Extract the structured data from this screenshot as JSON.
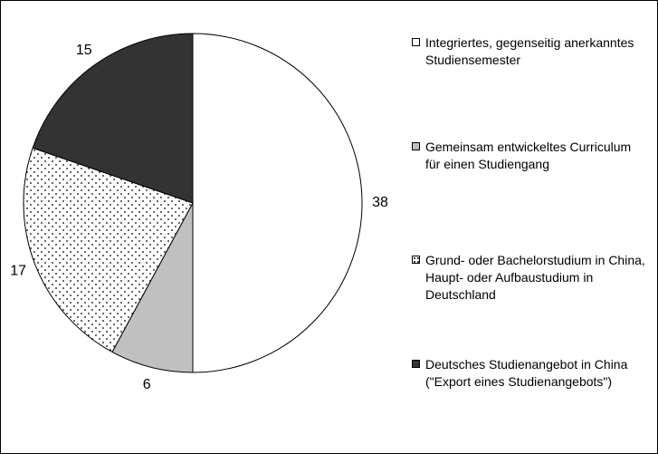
{
  "chart_data": {
    "type": "pie",
    "categories": [
      "Integriertes, gegenseitig anerkanntes Studiensemester",
      "Gemeinsam entwickeltes Curriculum für einen Studiengang",
      "Grund- oder Bachelorstudium in China, Haupt- oder Aufbaustudium in Deutschland",
      "Deutsches Studienangebot in China (\"Export eines Studienangebots\")"
    ],
    "values": [
      38,
      6,
      17,
      15
    ],
    "colors": [
      "#ffffff",
      "#c0c0c0",
      "#ffffff",
      "#333333"
    ],
    "fills": [
      "solid",
      "solid",
      "dotted",
      "solid"
    ],
    "legend": "right"
  }
}
